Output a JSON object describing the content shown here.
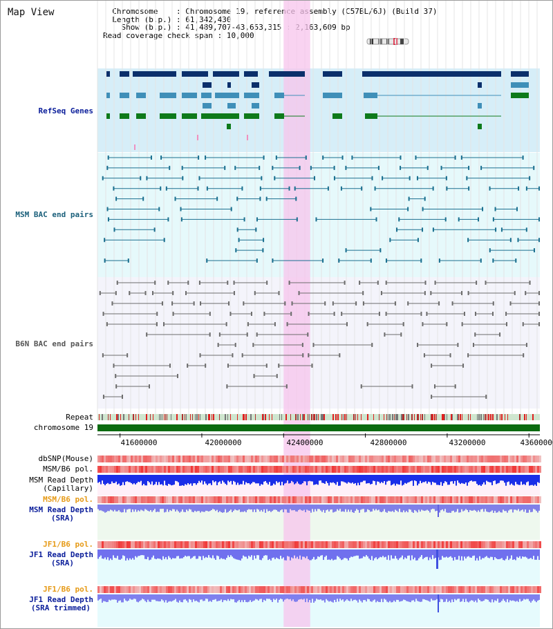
{
  "view_title": "Map View",
  "info": {
    "chromosome_label": "Chromosome",
    "chromosome_value": "Chromosome 19, reference assembly (C57BL/6J) (Build 37)",
    "length_label": "Length (b.p.)",
    "length_value": "61,342,430",
    "show_label": "Show (b.p.)",
    "show_value": "41,489,707-43,653,315 : 2,163,609 bp",
    "span_label": "Read coverage check span",
    "span_value": "10,000"
  },
  "tracks": {
    "refseq": "RefSeq Genes",
    "msm_bac": "MSM BAC end pairs",
    "b6n_bac": "B6N BAC end pairs",
    "repeat": "Repeat",
    "chromosome": "chromosome 19",
    "dbsnp": "dbSNP(Mouse)",
    "msm_b6_pol": "MSM/B6 pol.",
    "msm_read_depth_cap_1": "MSM Read Depth",
    "msm_read_depth_cap_2": "(Capillary)",
    "msm_b6_pol_2": "MSM/B6 pol.",
    "msm_read_depth_sra_1": "MSM Read Depth",
    "msm_read_depth_sra_2": "(SRA)",
    "jf1_b6_pol": "JF1/B6 pol.",
    "jf1_read_depth_sra_1": "JF1 Read Depth",
    "jf1_read_depth_sra_2": "(SRA)",
    "jf1_b6_pol_2": "JF1/B6 pol.",
    "jf1_read_depth_trim_1": "JF1 Read Depth",
    "jf1_read_depth_trim_2": "(SRA trimmed)"
  },
  "axis": {
    "ticks": [
      "41600000",
      "42000000",
      "42400000",
      "42800000",
      "43200000",
      "43600000"
    ],
    "tick_values": [
      41600000,
      42000000,
      42400000,
      42800000,
      43200000,
      43600000
    ],
    "start": 41489707,
    "end": 43653315
  },
  "highlight_region": [
    42400000,
    42530000
  ],
  "colors": {
    "refseq_bg": "#d6eef8",
    "msm_bg": "#e6f9fb",
    "b6n_bg": "#f4f4fb",
    "highlight": "#f7c4ec",
    "chromosome_bar": "#0b6b10",
    "gene_dark": "#0b2f6b",
    "gene_mid": "#3f8fb8",
    "gene_green": "#0e7a1a"
  }
}
